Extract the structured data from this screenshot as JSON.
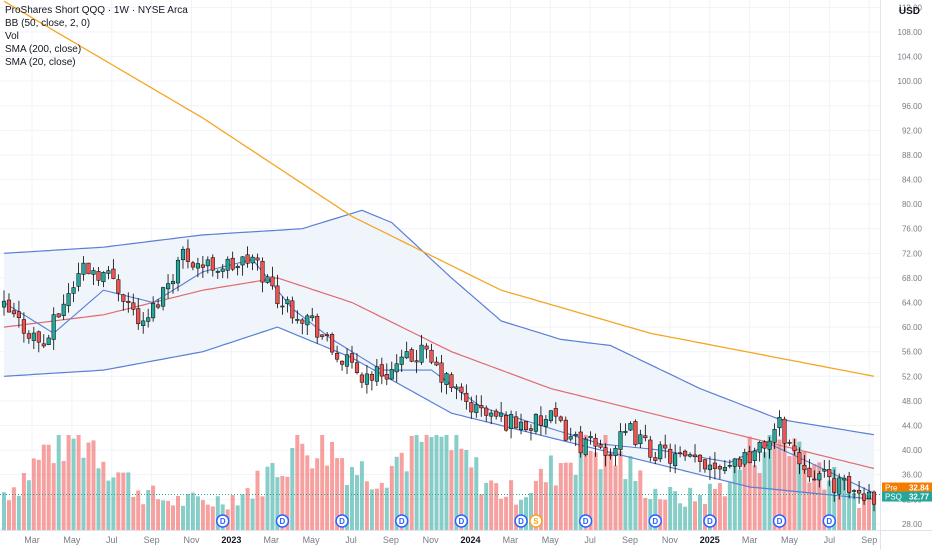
{
  "header": {
    "title": "ProShares Short QQQ · 1W · NYSE Arca",
    "indicators": [
      "BB (50, close, 2, 0)",
      "Vol",
      "SMA (200, close)",
      "SMA (20, close)"
    ],
    "currency": "USD"
  },
  "price_tags": [
    {
      "label": "Pre",
      "value": "32.84",
      "color": "#f57c00"
    },
    {
      "label": "PSQ",
      "value": "32.77",
      "color": "#26a69a"
    }
  ],
  "dividend_marker": "D",
  "split_marker": "S",
  "colors": {
    "up": "#26a69a",
    "down": "#ef5350",
    "bb_band": "#5b7fd6",
    "bb_fill": "#eef4fb",
    "sma200": "#f5a623",
    "basis": "#e06a6f",
    "grid": "#f0f3fa"
  },
  "chart_data": {
    "type": "candlestick",
    "interval": "1W",
    "y_axis": {
      "ticks": [
        "28.00",
        "32.00",
        "36.00",
        "40.00",
        "44.00",
        "48.00",
        "52.00",
        "56.00",
        "60.00",
        "64.00",
        "68.00",
        "72.00",
        "76.00",
        "80.00",
        "84.00",
        "88.00",
        "92.00",
        "96.00",
        "100.00",
        "104.00",
        "108.00",
        "112.00"
      ],
      "range": [
        27.0,
        113.2
      ],
      "position": "right"
    },
    "x_axis": {
      "ticks": [
        "Mar",
        "May",
        "Jul",
        "Sep",
        "Nov",
        "2023",
        "Mar",
        "May",
        "Jul",
        "Sep",
        "Nov",
        "2024",
        "Mar",
        "May",
        "Jul",
        "Sep",
        "Nov",
        "2025",
        "Mar",
        "May",
        "Jul",
        "Sep"
      ],
      "bold_ticks": [
        "2023",
        "2024",
        "2025"
      ]
    },
    "price_anchors": [
      {
        "t": 0,
        "v": 63
      },
      {
        "t": 8,
        "v": 57
      },
      {
        "t": 12,
        "v": 64
      },
      {
        "t": 16,
        "v": 70
      },
      {
        "t": 22,
        "v": 68
      },
      {
        "t": 28,
        "v": 60
      },
      {
        "t": 36,
        "v": 72
      },
      {
        "t": 40,
        "v": 70
      },
      {
        "t": 46,
        "v": 70
      },
      {
        "t": 50,
        "v": 71
      },
      {
        "t": 56,
        "v": 64
      },
      {
        "t": 62,
        "v": 61
      },
      {
        "t": 66,
        "v": 56
      },
      {
        "t": 72,
        "v": 52
      },
      {
        "t": 78,
        "v": 53
      },
      {
        "t": 84,
        "v": 56
      },
      {
        "t": 88,
        "v": 52
      },
      {
        "t": 94,
        "v": 47
      },
      {
        "t": 100,
        "v": 45
      },
      {
        "t": 106,
        "v": 44
      },
      {
        "t": 110,
        "v": 45
      },
      {
        "t": 116,
        "v": 41
      },
      {
        "t": 122,
        "v": 40
      },
      {
        "t": 126,
        "v": 43
      },
      {
        "t": 130,
        "v": 40
      },
      {
        "t": 138,
        "v": 38
      },
      {
        "t": 146,
        "v": 38
      },
      {
        "t": 152,
        "v": 40
      },
      {
        "t": 156,
        "v": 44
      },
      {
        "t": 160,
        "v": 38
      },
      {
        "t": 166,
        "v": 35
      },
      {
        "t": 172,
        "v": 33
      },
      {
        "t": 175,
        "v": 32.77
      }
    ],
    "sma200": [
      {
        "t": 0,
        "v": 113
      },
      {
        "t": 40,
        "v": 94
      },
      {
        "t": 70,
        "v": 78
      },
      {
        "t": 100,
        "v": 66
      },
      {
        "t": 130,
        "v": 59
      },
      {
        "t": 175,
        "v": 52
      }
    ],
    "bb_upper": [
      {
        "t": 0,
        "v": 72
      },
      {
        "t": 20,
        "v": 73
      },
      {
        "t": 40,
        "v": 75
      },
      {
        "t": 60,
        "v": 76
      },
      {
        "t": 72,
        "v": 79
      },
      {
        "t": 78,
        "v": 77
      },
      {
        "t": 90,
        "v": 68
      },
      {
        "t": 100,
        "v": 61
      },
      {
        "t": 112,
        "v": 58
      },
      {
        "t": 122,
        "v": 57
      },
      {
        "t": 140,
        "v": 50
      },
      {
        "t": 156,
        "v": 45
      },
      {
        "t": 175,
        "v": 42.5
      }
    ],
    "bb_basis": [
      {
        "t": 0,
        "v": 60
      },
      {
        "t": 20,
        "v": 62
      },
      {
        "t": 40,
        "v": 66
      },
      {
        "t": 55,
        "v": 68
      },
      {
        "t": 70,
        "v": 64
      },
      {
        "t": 90,
        "v": 56
      },
      {
        "t": 110,
        "v": 50
      },
      {
        "t": 130,
        "v": 46
      },
      {
        "t": 150,
        "v": 42
      },
      {
        "t": 175,
        "v": 37
      }
    ],
    "bb_lower": [
      {
        "t": 0,
        "v": 52
      },
      {
        "t": 20,
        "v": 53
      },
      {
        "t": 40,
        "v": 56
      },
      {
        "t": 55,
        "v": 60
      },
      {
        "t": 70,
        "v": 55
      },
      {
        "t": 90,
        "v": 46
      },
      {
        "t": 110,
        "v": 42
      },
      {
        "t": 130,
        "v": 38
      },
      {
        "t": 150,
        "v": 34
      },
      {
        "t": 175,
        "v": 32
      }
    ],
    "sma20": [
      {
        "t": 0,
        "v": 64
      },
      {
        "t": 10,
        "v": 59
      },
      {
        "t": 20,
        "v": 66
      },
      {
        "t": 30,
        "v": 64
      },
      {
        "t": 40,
        "v": 69
      },
      {
        "t": 50,
        "v": 71
      },
      {
        "t": 58,
        "v": 63
      },
      {
        "t": 66,
        "v": 58
      },
      {
        "t": 76,
        "v": 53
      },
      {
        "t": 86,
        "v": 53
      },
      {
        "t": 96,
        "v": 47
      },
      {
        "t": 108,
        "v": 44
      },
      {
        "t": 120,
        "v": 41
      },
      {
        "t": 132,
        "v": 40
      },
      {
        "t": 146,
        "v": 38
      },
      {
        "t": 154,
        "v": 41
      },
      {
        "t": 162,
        "v": 38
      },
      {
        "t": 175,
        "v": 33
      }
    ],
    "volume_peaks": [
      {
        "t": 14,
        "v": 0.85
      },
      {
        "t": 62,
        "v": 0.75
      },
      {
        "t": 86,
        "v": 0.8
      },
      {
        "t": 118,
        "v": 0.7
      },
      {
        "t": 156,
        "v": 0.8
      }
    ],
    "last_price": 32.77,
    "dividend_positions": [
      44,
      56,
      68,
      80,
      92,
      104,
      117,
      131,
      142,
      156,
      166
    ],
    "split_position": 107
  }
}
